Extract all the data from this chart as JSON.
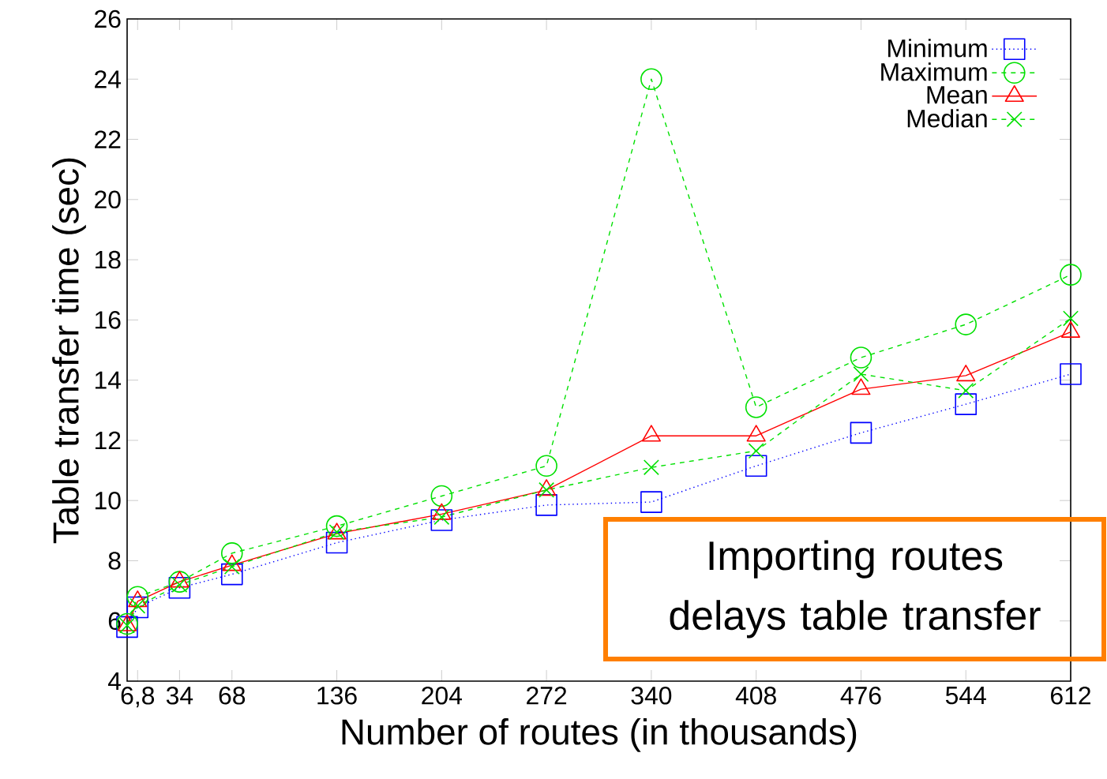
{
  "chart_data": {
    "type": "line",
    "xlabel": "Number of routes (in thousands)",
    "ylabel": "Table transfer time (sec)",
    "x": [
      0,
      6.8,
      34,
      68,
      136,
      204,
      272,
      340,
      408,
      476,
      544,
      612
    ],
    "series": [
      {
        "name": "Minimum",
        "color": "#0000ff",
        "marker": "square",
        "line_style": "dotted",
        "values": [
          5.8,
          6.45,
          7.1,
          7.55,
          8.6,
          9.35,
          9.85,
          9.95,
          11.15,
          12.25,
          13.2,
          14.2
        ]
      },
      {
        "name": "Maximum",
        "color": "#00e000",
        "marker": "circle",
        "line_style": "dashed",
        "values": [
          5.9,
          6.8,
          7.3,
          8.25,
          9.15,
          10.15,
          11.15,
          24.0,
          13.1,
          14.75,
          15.85,
          17.5
        ]
      },
      {
        "name": "Mean",
        "color": "#ff0000",
        "marker": "triangle",
        "line_style": "solid",
        "values": [
          5.85,
          6.65,
          7.3,
          7.85,
          8.9,
          9.55,
          10.35,
          12.15,
          12.15,
          13.7,
          14.15,
          15.6
        ]
      },
      {
        "name": "Median",
        "color": "#00e000",
        "marker": "cross",
        "line_style": "dashed",
        "values": [
          5.85,
          6.5,
          7.2,
          7.8,
          8.95,
          9.45,
          10.35,
          11.1,
          11.65,
          14.2,
          13.65,
          16.05
        ]
      }
    ],
    "xlim": [
      0,
      612
    ],
    "xticks": [
      {
        "value": 6.8,
        "label": "6,8"
      },
      34,
      68,
      136,
      204,
      272,
      340,
      408,
      476,
      544,
      612
    ],
    "ylim": [
      4,
      26
    ],
    "yticks": [
      4,
      6,
      8,
      10,
      12,
      14,
      16,
      18,
      20,
      22,
      24,
      26
    ],
    "grid": false,
    "legend": "top right",
    "annotations": [
      "Importing routes delays table transfer"
    ]
  }
}
